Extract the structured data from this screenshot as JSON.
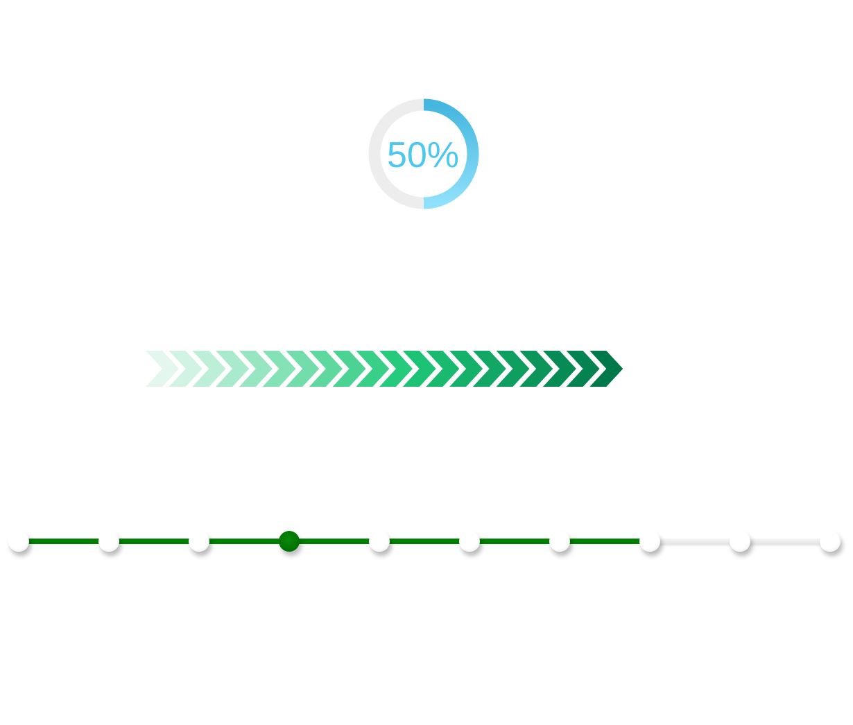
{
  "circle_progress": {
    "value_percent": 50,
    "label": "50%",
    "track_color": "#ededed",
    "gradient_start": "#44b6df",
    "gradient_end": "#8fe0fb",
    "text_color": "#4cc8f0"
  },
  "chevron_progress": {
    "count": 20,
    "color_from": "#e3f7ee",
    "color_to": "#00794a"
  },
  "stepper": {
    "total_steps": 10,
    "active_step": 4,
    "completed_through_step": 8,
    "done_color": "#007f00",
    "active_color": "#007300",
    "todo_color": "#e8e8e8"
  }
}
